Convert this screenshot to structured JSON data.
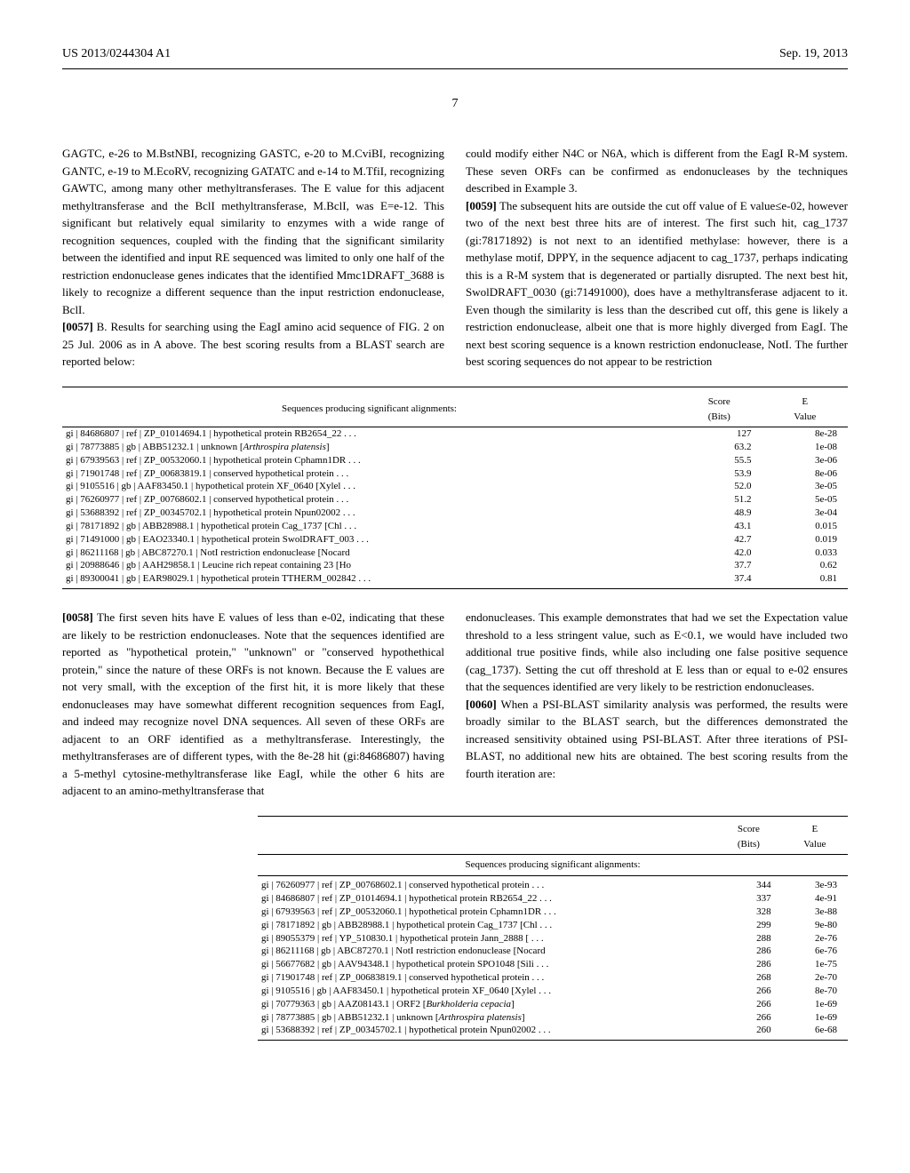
{
  "header": {
    "pub_number": "US 2013/0244304 A1",
    "pub_date": "Sep. 19, 2013"
  },
  "page_number": "7",
  "left_col": {
    "p1": "GAGTC, e-26 to M.BstNBI, recognizing GASTC, e-20 to M.CviBI, recognizing GANTC, e-19 to M.EcoRV, recognizing GATATC and e-14 to M.TfiI, recognizing GAWTC, among many other methyltransferases. The E value for this adjacent methyltransferase and the BclI methyltransferase, M.BclI, was E=e-12. This significant but relatively equal similarity to enzymes with a wide range of recognition sequences, coupled with the finding that the significant similarity between the identified and input RE sequenced was limited to only one half of the restriction endonuclease genes indicates that the identified Mmc1DRAFT_3688 is likely to recognize a different sequence than the input restriction endonuclease, BclI.",
    "p2_num": "[0057]",
    "p2": "B. Results for searching using the EagI amino acid sequence of FIG. 2 on 25 Jul. 2006 as in A above. The best scoring results from a BLAST search are reported below:"
  },
  "right_col": {
    "p1": "could modify either N4C or N6A, which is different from the EagI R-M system. These seven ORFs can be confirmed as endonucleases by the techniques described in Example 3.",
    "p2_num": "[0059]",
    "p2": "The subsequent hits are outside the cut off value of E value≤e-02, however two of the next best three hits are of interest. The first such hit, cag_1737 (gi:78171892) is not next to an identified methylase: however, there is a methylase motif, DPPY, in the sequence adjacent to cag_1737, perhaps indicating this is a R-M system that is degenerated or partially disrupted. The next best hit, SwolDRAFT_0030 (gi:71491000), does have a methyltransferase adjacent to it. Even though the similarity is less than the described cut off, this gene is likely a restriction endonuclease, albeit one that is more highly diverged from EagI. The next best scoring sequence is a known restriction endonuclease, NotI. The further best scoring sequences do not appear to be restriction"
  },
  "table1": {
    "header": "Sequences producing significant alignments:",
    "col_score": "Score\n(Bits)",
    "col_e": "E\nValue",
    "rows": [
      {
        "seq": "gi | 84686807 | ref | ZP_01014694.1 |     hypothetical protein RB2654_22 . . .",
        "score": "127",
        "e": "8e-28"
      },
      {
        "seq": "gi | 78773885 | gb | ABB51232.1 |     unknown [Arthrospira platensis]",
        "score": "63.2",
        "e": "1e-08"
      },
      {
        "seq": "gi | 67939563 | ref | ZP_00532060.1 |     hypothetical protein Cphamn1DR . . .",
        "score": "55.5",
        "e": "3e-06"
      },
      {
        "seq": "gi | 71901748 | ref | ZP_00683819.1 |     conserved hypothetical protein . . .",
        "score": "53.9",
        "e": "8e-06"
      },
      {
        "seq": "gi | 9105516 | gb | AAF83450.1 |   hypothetical protein XF_0640 [Xylel . . .",
        "score": "52.0",
        "e": "3e-05"
      },
      {
        "seq": "gi | 76260977 | ref | ZP_00768602.1 |     conserved hypothetical protein . . .",
        "score": "51.2",
        "e": "5e-05"
      },
      {
        "seq": "gi | 53688392 | ref | ZP_00345702.1 |     hypothetical protein Npun02002 . . .",
        "score": "48.9",
        "e": "3e-04"
      },
      {
        "seq": "gi | 78171892 | gb | ABB28988.1 |     hypothetical protein Cag_1737 [Chl . . .",
        "score": "43.1",
        "e": "0.015"
      },
      {
        "seq": "gi | 71491000 | gb | EAO23340.1 |     hypothetical protein SwolDRAFT_003 . . .",
        "score": "42.7",
        "e": "0.019"
      },
      {
        "seq": "gi | 86211168 | gb | ABC87270.1 |     NotI restriction endonuclease [Nocard",
        "score": "42.0",
        "e": "0.033"
      },
      {
        "seq": "gi | 20988646 | gb | AAH29858.1 |     Leucine rich repeat containing 23 [Ho",
        "score": "37.7",
        "e": "0.62"
      },
      {
        "seq": "gi | 89300041 | gb | EAR98029.1 |     hypothetical protein TTHERM_002842 . . .",
        "score": "37.4",
        "e": "0.81"
      }
    ]
  },
  "bottom_left": {
    "p1_num": "[0058]",
    "p1": "The first seven hits have E values of less than e-02, indicating that these are likely to be restriction endonucleases. Note that the sequences identified are reported as \"hypothetical protein,\" \"unknown\" or \"conserved hypothethical protein,\" since the nature of these ORFs is not known. Because the E values are not very small, with the exception of the first hit, it is more likely that these endonucleases may have somewhat different recognition sequences from EagI, and indeed may recognize novel DNA sequences. All seven of these ORFs are adjacent to an ORF identified as a methyltransferase. Interestingly, the methyltransferases are of different types, with the 8e-28 hit (gi:84686807) having a 5-methyl cytosine-methyltransferase like EagI, while the other 6 hits are adjacent to an amino-methyltransferase that"
  },
  "bottom_right": {
    "p1": "endonucleases. This example demonstrates that had we set the Expectation value threshold to a less stringent value, such as E<0.1, we would have included two additional true positive finds, while also including one false positive sequence (cag_1737). Setting the cut off threshold at E less than or equal to e-02 ensures that the sequences identified are very likely to be restriction endonucleases.",
    "p2_num": "[0060]",
    "p2": "When a PSI-BLAST similarity analysis was performed, the results were broadly similar to the BLAST search, but the differences demonstrated the increased sensitivity obtained using PSI-BLAST. After three iterations of PSI-BLAST, no additional new hits are obtained. The best scoring results from the fourth iteration are:"
  },
  "table2": {
    "col_score": "Score\n(Bits)",
    "col_e": "E\nValue",
    "header": "Sequences producing significant alignments:",
    "rows": [
      {
        "seq": "gi | 76260977 | ref | ZP_00768602.1 |     conserved hypothetical protein . . .",
        "score": "344",
        "e": "3e-93"
      },
      {
        "seq": "gi | 84686807 | ref | ZP_01014694.1 |     hypothetical protein RB2654_22 . . .",
        "score": "337",
        "e": "4e-91"
      },
      {
        "seq": "gi | 67939563 | ref | ZP_00532060.1 |     hypothetical protein Cphamn1DR . . .",
        "score": "328",
        "e": "3e-88"
      },
      {
        "seq": "gi | 78171892 | gb | ABB28988.1 |    hypothetical protein Cag_1737 [Chl . . .",
        "score": "299",
        "e": "9e-80"
      },
      {
        "seq": "gi | 89055379 | ref | YP_510830.1 |     hypothetical protein Jann_2888 [ . . .",
        "score": "288",
        "e": "2e-76"
      },
      {
        "seq": "gi | 86211168 | gb | ABC87270.1 |     NotI restriction endonuclease [Nocard",
        "score": "286",
        "e": "6e-76"
      },
      {
        "seq": "gi | 56677682 | gb | AAV94348.1 |     hypothetical protein SPO1048 [Sili . . .",
        "score": "286",
        "e": "1e-75"
      },
      {
        "seq": "gi | 71901748 | ref | ZP_00683819.1 |     conserved hypothetical protein . . .",
        "score": "268",
        "e": "2e-70"
      },
      {
        "seq": "gi | 9105516 | gb | AAF83450.1 |   hypothetical protein XF_0640 [Xylel . . .",
        "score": "266",
        "e": "8e-70"
      },
      {
        "seq": "gi | 70779363 | gb | AAZ08143.1 |     ORF2 [Burkholderia cepacia]",
        "score": "266",
        "e": "1e-69"
      },
      {
        "seq": "gi | 78773885 | gb | ABB51232.1 |     unknown [Arthrospira platensis]",
        "score": "266",
        "e": "1e-69"
      },
      {
        "seq": "gi | 53688392 | ref | ZP_00345702.1 |     hypothetical protein Npun02002 . . .",
        "score": "260",
        "e": "6e-68"
      }
    ]
  }
}
